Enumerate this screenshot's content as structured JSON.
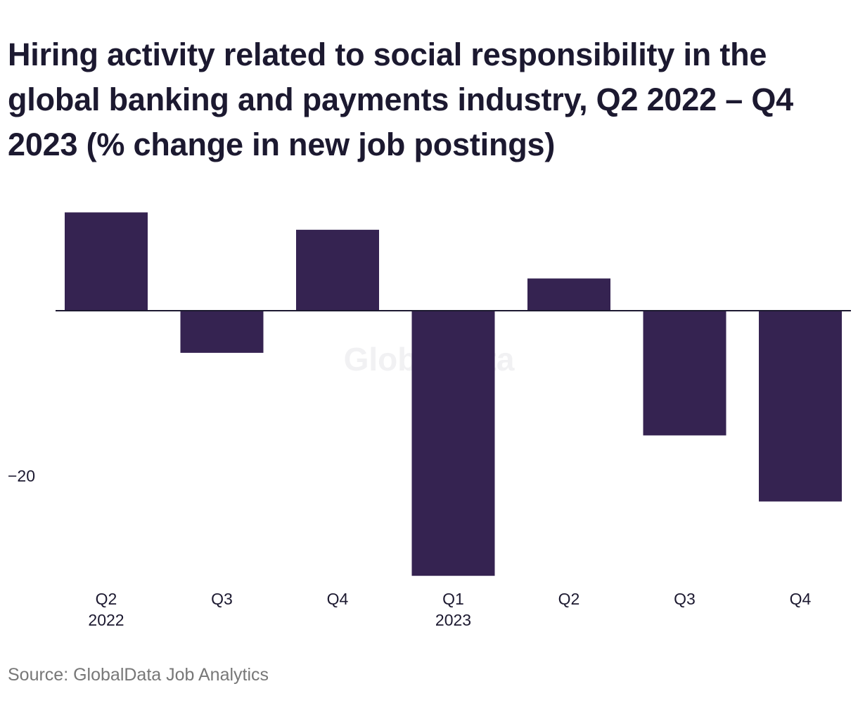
{
  "title": "Hiring activity related to social responsibility in the global banking and payments industry, Q2 2022 – Q4 2023 (% change in new job postings)",
  "source": "Source: GlobalData Job Analytics",
  "watermark": "GlobalData",
  "colors": {
    "bar": "#352351",
    "axis": "#1c1930",
    "title": "#1c1930",
    "source": "#777777"
  },
  "chart_data": {
    "type": "bar",
    "categories": [
      "Q2\n2022",
      "Q3",
      "Q4",
      "Q1\n2023",
      "Q2",
      "Q3",
      "Q4"
    ],
    "values": [
      11.9,
      -5.1,
      9.8,
      -32.1,
      3.9,
      -15.1,
      -23.1
    ],
    "yticks": [
      -20
    ],
    "ytick_labels": [
      "−20"
    ],
    "ylim": [
      -34,
      14
    ],
    "grid": false,
    "legend": "none",
    "xlabel": "",
    "ylabel": ""
  }
}
